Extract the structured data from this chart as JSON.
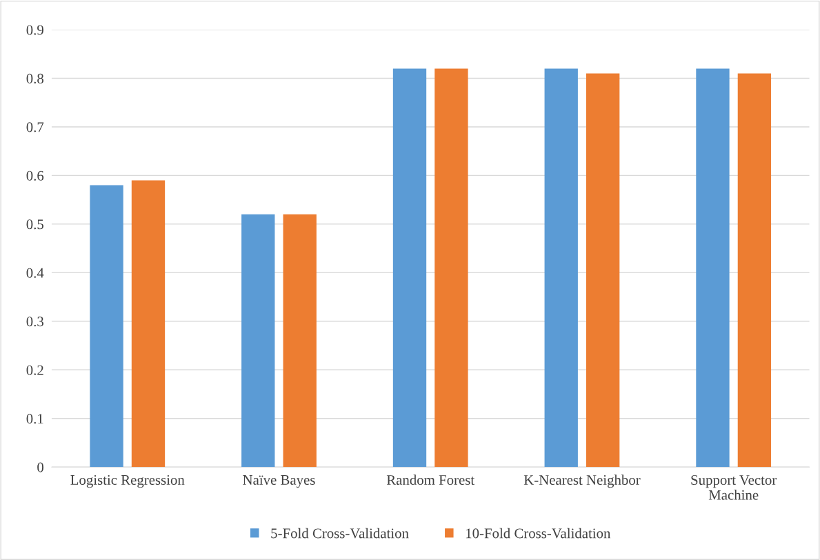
{
  "chart_data": {
    "type": "bar",
    "categories": [
      "Logistic Regression",
      "Naïve Bayes",
      "Random Forest",
      "K-Nearest Neighbor",
      "Support Vector\nMachine"
    ],
    "series": [
      {
        "name": "5-Fold Cross-Validation",
        "color": "#5b9bd5",
        "values": [
          0.58,
          0.52,
          0.82,
          0.82,
          0.82
        ]
      },
      {
        "name": "10-Fold Cross-Validation",
        "color": "#ed7d31",
        "values": [
          0.59,
          0.52,
          0.82,
          0.81,
          0.81
        ]
      }
    ],
    "ylim": [
      0,
      0.9
    ],
    "yticks": [
      {
        "value": 0,
        "label": "0"
      },
      0.1,
      0.2,
      0.3,
      0.4,
      0.5,
      0.6,
      0.7,
      0.8,
      0.9
    ],
    "grid": "y",
    "legend": "bottom"
  }
}
